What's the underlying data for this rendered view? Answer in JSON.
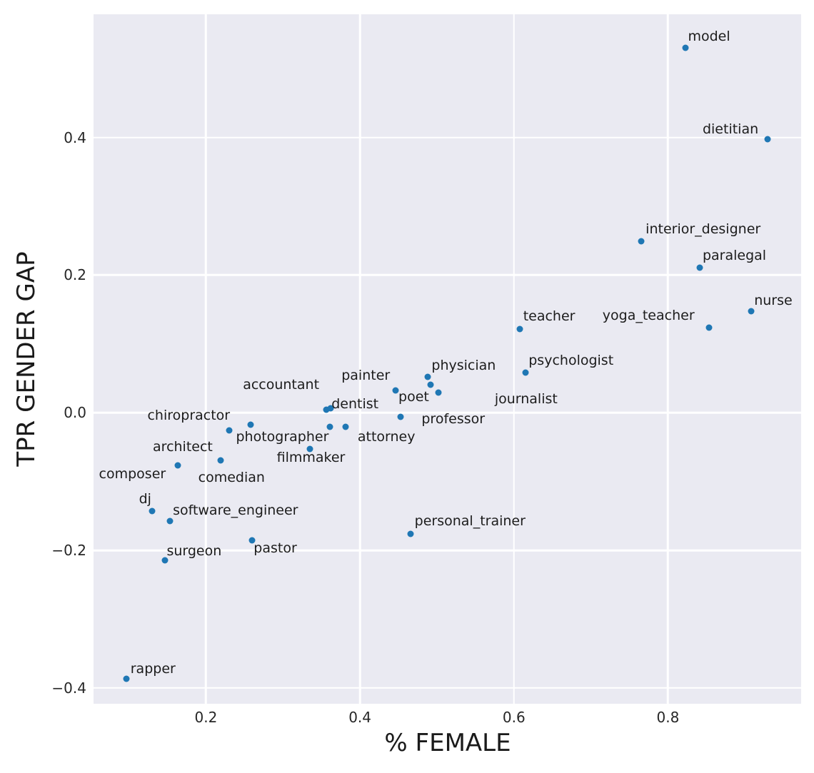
{
  "chart_data": {
    "type": "scatter",
    "title": "",
    "xlabel": "% FEMALE",
    "ylabel": "TPR GENDER GAP",
    "xlim": [
      0.054,
      0.973
    ],
    "ylim": [
      -0.423,
      0.579
    ],
    "grid": true,
    "legend": false,
    "plot_bg_color": "#eaeaf2",
    "grid_color": "#ffffff",
    "point_color": "#1f77b4",
    "x_ticks": [
      {
        "value": 0.2,
        "label": "0.2"
      },
      {
        "value": 0.4,
        "label": "0.4"
      },
      {
        "value": 0.6,
        "label": "0.6"
      },
      {
        "value": 0.8,
        "label": "0.8"
      }
    ],
    "y_ticks": [
      {
        "value": 0.4,
        "label": "0.4"
      },
      {
        "value": 0.2,
        "label": "0.2"
      },
      {
        "value": 0.0,
        "label": "0.0"
      },
      {
        "value": -0.2,
        "label": "−0.2"
      },
      {
        "value": -0.4,
        "label": "−0.4"
      }
    ],
    "points": [
      {
        "name": "model",
        "x": 0.823,
        "y": 0.53,
        "lx": 0.826,
        "ly": 0.546
      },
      {
        "name": "dietitian",
        "x": 0.929,
        "y": 0.397,
        "lx": 0.845,
        "ly": 0.411
      },
      {
        "name": "interior_designer",
        "x": 0.765,
        "y": 0.249,
        "lx": 0.771,
        "ly": 0.266
      },
      {
        "name": "paralegal",
        "x": 0.841,
        "y": 0.211,
        "lx": 0.845,
        "ly": 0.227
      },
      {
        "name": "nurse",
        "x": 0.908,
        "y": 0.148,
        "lx": 0.912,
        "ly": 0.162
      },
      {
        "name": "yoga_teacher",
        "x": 0.853,
        "y": 0.124,
        "lx": 0.715,
        "ly": 0.14
      },
      {
        "name": "teacher",
        "x": 0.608,
        "y": 0.122,
        "lx": 0.612,
        "ly": 0.139
      },
      {
        "name": "psychologist",
        "x": 0.615,
        "y": 0.058,
        "lx": 0.619,
        "ly": 0.075
      },
      {
        "name": "physician",
        "x": 0.488,
        "y": 0.052,
        "lx": 0.493,
        "ly": 0.068
      },
      {
        "name": "painter",
        "x": 0.492,
        "y": 0.041,
        "lx": 0.376,
        "ly": 0.053
      },
      {
        "name": "journalist",
        "x": 0.502,
        "y": 0.029,
        "lx": 0.575,
        "ly": 0.019
      },
      {
        "name": "poet",
        "x": 0.446,
        "y": 0.032,
        "lx": 0.45,
        "ly": 0.022
      },
      {
        "name": "professor",
        "x": 0.453,
        "y": -0.006,
        "lx": 0.48,
        "ly": -0.01
      },
      {
        "name": "accountant",
        "x": 0.356,
        "y": 0.004,
        "lx": 0.248,
        "ly": 0.04
      },
      {
        "name": "dentist",
        "x": 0.362,
        "y": 0.006,
        "lx": 0.363,
        "ly": 0.012
      },
      {
        "name": "chiropractor",
        "x": 0.258,
        "y": -0.017,
        "lx": 0.124,
        "ly": -0.005
      },
      {
        "name": "architect",
        "x": 0.23,
        "y": -0.026,
        "lx": 0.131,
        "ly": -0.051
      },
      {
        "name": "photographer",
        "x": 0.361,
        "y": -0.021,
        "lx": 0.239,
        "ly": -0.036
      },
      {
        "name": "attorney",
        "x": 0.381,
        "y": -0.021,
        "lx": 0.397,
        "ly": -0.036
      },
      {
        "name": "filmmaker",
        "x": 0.335,
        "y": -0.053,
        "lx": 0.292,
        "ly": -0.066
      },
      {
        "name": "comedian",
        "x": 0.219,
        "y": -0.069,
        "lx": 0.19,
        "ly": -0.095
      },
      {
        "name": "composer",
        "x": 0.163,
        "y": -0.077,
        "lx": 0.061,
        "ly": -0.09
      },
      {
        "name": "dj",
        "x": 0.13,
        "y": -0.143,
        "lx": 0.113,
        "ly": -0.126
      },
      {
        "name": "software_engineer",
        "x": 0.153,
        "y": -0.157,
        "lx": 0.157,
        "ly": -0.143
      },
      {
        "name": "surgeon",
        "x": 0.147,
        "y": -0.214,
        "lx": 0.149,
        "ly": -0.202
      },
      {
        "name": "pastor",
        "x": 0.26,
        "y": -0.185,
        "lx": 0.262,
        "ly": -0.198
      },
      {
        "name": "personal_trainer",
        "x": 0.466,
        "y": -0.176,
        "lx": 0.471,
        "ly": -0.159
      },
      {
        "name": "rapper",
        "x": 0.097,
        "y": -0.387,
        "lx": 0.102,
        "ly": -0.373
      }
    ]
  }
}
